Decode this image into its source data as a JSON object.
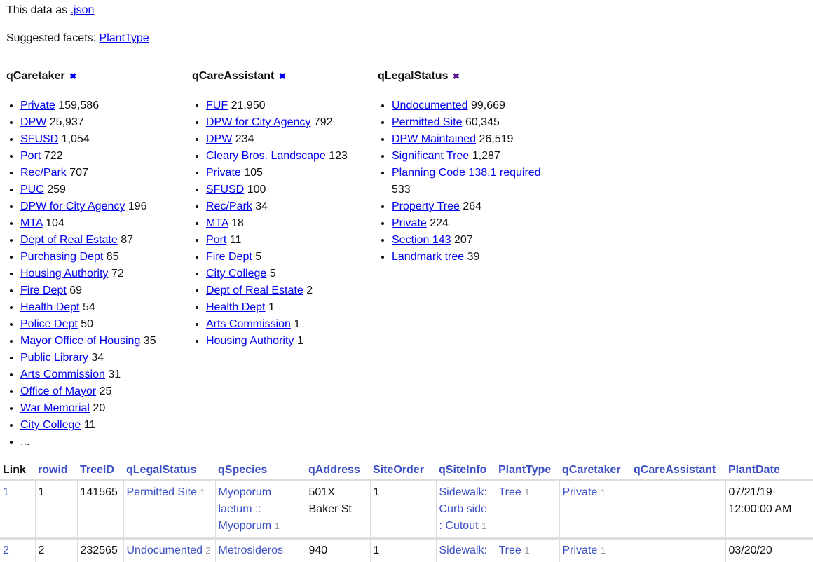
{
  "header": {
    "data_as_label": "This data as",
    "json_link": ".json",
    "suggested_label": "Suggested facets:",
    "suggested_facets": [
      "PlantType"
    ]
  },
  "facets": [
    {
      "name": "qCaretaker",
      "items": [
        {
          "label": "Private",
          "count": "159,586"
        },
        {
          "label": "DPW",
          "count": "25,937"
        },
        {
          "label": "SFUSD",
          "count": "1,054"
        },
        {
          "label": "Port",
          "count": "722"
        },
        {
          "label": "Rec/Park",
          "count": "707"
        },
        {
          "label": "PUC",
          "count": "259"
        },
        {
          "label": "DPW for City Agency",
          "count": "196"
        },
        {
          "label": "MTA",
          "count": "104"
        },
        {
          "label": "Dept of Real Estate",
          "count": "87"
        },
        {
          "label": "Purchasing Dept",
          "count": "85"
        },
        {
          "label": "Housing Authority",
          "count": "72"
        },
        {
          "label": "Fire Dept",
          "count": "69"
        },
        {
          "label": "Health Dept",
          "count": "54"
        },
        {
          "label": "Police Dept",
          "count": "50"
        },
        {
          "label": "Mayor Office of Housing",
          "count": "35"
        },
        {
          "label": "Public Library",
          "count": "34"
        },
        {
          "label": "Arts Commission",
          "count": "31"
        },
        {
          "label": "Office of Mayor",
          "count": "25"
        },
        {
          "label": "War Memorial",
          "count": "20"
        },
        {
          "label": "City College",
          "count": "11"
        }
      ],
      "more": "..."
    },
    {
      "name": "qCareAssistant",
      "items": [
        {
          "label": "FUF",
          "count": "21,950"
        },
        {
          "label": "DPW for City Agency",
          "count": "792"
        },
        {
          "label": "DPW",
          "count": "234"
        },
        {
          "label": "Cleary Bros. Landscape",
          "count": "123"
        },
        {
          "label": "Private",
          "count": "105"
        },
        {
          "label": "SFUSD",
          "count": "100"
        },
        {
          "label": "Rec/Park",
          "count": "34"
        },
        {
          "label": "MTA",
          "count": "18"
        },
        {
          "label": "Port",
          "count": "11"
        },
        {
          "label": "Fire Dept",
          "count": "5"
        },
        {
          "label": "City College",
          "count": "5"
        },
        {
          "label": "Dept of Real Estate",
          "count": "2"
        },
        {
          "label": "Health Dept",
          "count": "1"
        },
        {
          "label": "Arts Commission",
          "count": "1"
        },
        {
          "label": "Housing Authority",
          "count": "1"
        }
      ]
    },
    {
      "name": "qLegalStatus",
      "visited": true,
      "items": [
        {
          "label": "Undocumented",
          "count": "99,669"
        },
        {
          "label": "Permitted Site",
          "count": "60,345"
        },
        {
          "label": "DPW Maintained",
          "count": "26,519"
        },
        {
          "label": "Significant Tree",
          "count": "1,287"
        },
        {
          "label": "Planning Code 138.1 required",
          "count": "533"
        },
        {
          "label": "Property Tree",
          "count": "264"
        },
        {
          "label": "Private",
          "count": "224"
        },
        {
          "label": "Section 143",
          "count": "207"
        },
        {
          "label": "Landmark tree",
          "count": "39"
        }
      ]
    }
  ],
  "table": {
    "columns": [
      "Link",
      "rowid",
      "TreeID",
      "qLegalStatus",
      "qSpecies",
      "qAddress",
      "SiteOrder",
      "qSiteInfo",
      "PlantType",
      "qCaretaker",
      "qCareAssistant",
      "PlantDate"
    ],
    "rows": [
      {
        "link": "1",
        "rowid": "1",
        "treeid": "141565",
        "legal": "Permitted Site",
        "legal_n": "1",
        "species": "Myoporum laetum :: Myoporum",
        "species_n": "1",
        "address": "501X Baker St",
        "siteorder": "1",
        "siteinfo": "Sidewalk: Curb side : Cutout",
        "siteinfo_n": "1",
        "planttype": "Tree",
        "planttype_n": "1",
        "caretaker": "Private",
        "caretaker_n": "1",
        "careassistant": "",
        "plantdate": "07/21/19 12:00:00 AM"
      },
      {
        "link": "2",
        "rowid": "2",
        "treeid": "232565",
        "legal": "Undocumented",
        "legal_n": "2",
        "species": "Metrosideros",
        "species_n": "",
        "address": "940",
        "siteorder": "1",
        "siteinfo": "Sidewalk:",
        "siteinfo_n": "",
        "planttype": "Tree",
        "planttype_n": "1",
        "caretaker": "Private",
        "caretaker_n": "1",
        "careassistant": "",
        "plantdate": "03/20/20"
      }
    ]
  }
}
